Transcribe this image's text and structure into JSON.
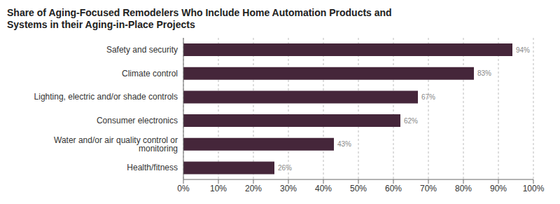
{
  "chart_data": {
    "type": "bar",
    "title": "Share of Aging-Focused Remodelers Who Include Home Automation Products and Systems in their Aging-in-Place Projects",
    "orientation": "horizontal",
    "categories": [
      "Safety and security",
      "Climate control",
      "Lighting, electric and/or shade controls",
      "Consumer electronics",
      "Water and/or air quality control or monitoring",
      "Health/fitness"
    ],
    "values": [
      94,
      83,
      67,
      62,
      43,
      26
    ],
    "value_labels": [
      "94%",
      "83%",
      "67%",
      "62%",
      "43%",
      "26%"
    ],
    "data_labels": true,
    "color": "#45263a",
    "xlim": [
      0,
      100
    ],
    "xticks": [
      {
        "value": 0,
        "label": "0%"
      },
      {
        "value": 10,
        "label": "10%"
      },
      {
        "value": 20,
        "label": "20%"
      },
      {
        "value": 30,
        "label": "30%"
      },
      {
        "value": 40,
        "label": "40%"
      },
      {
        "value": 50,
        "label": "50%"
      },
      {
        "value": 60,
        "label": "60%"
      },
      {
        "value": 70,
        "label": "70%"
      },
      {
        "value": 80,
        "label": "80%"
      },
      {
        "value": 90,
        "label": "90%"
      },
      {
        "value": 100,
        "label": "100%"
      }
    ],
    "grid": true
  }
}
